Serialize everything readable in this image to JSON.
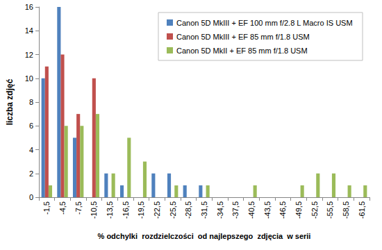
{
  "chart_data": {
    "type": "bar",
    "xlabel": "% odchylki  rozdzielczości  od najlepszego  zdjęcia  w serii",
    "ylabel": "liczba zdjęć",
    "categories": [
      "-1,5",
      "-4,5",
      "-7,5",
      "-10,5",
      "-13,5",
      "-16,5",
      "-19,5",
      "-22,5",
      "-25,5",
      "-28,5",
      "-31,5",
      "-34,5",
      "-37,5",
      "-40,5",
      "-43,5",
      "-46,5",
      "-49,5",
      "-52,5",
      "-55,5",
      "-58,5",
      "-61,5"
    ],
    "series": [
      {
        "name": "Canon 5D MkIII + EF 100 mm f/2.8 L Macro IS USM",
        "color": "#4f81bd",
        "values": [
          10,
          16,
          5,
          0,
          2,
          1,
          0,
          2,
          2,
          1,
          1,
          0,
          0,
          0,
          0,
          0,
          0,
          0,
          0,
          0,
          0
        ]
      },
      {
        "name": "Canon 5D MkIII + EF 85 mm f/1.8 USM",
        "color": "#c0504d",
        "values": [
          11,
          12,
          7,
          10,
          0,
          0,
          0,
          0,
          0,
          0,
          0,
          0,
          0,
          0,
          0,
          0,
          0,
          0,
          0,
          0,
          0
        ]
      },
      {
        "name": "Canon 5D MkII + EF 85 mm f/1.8 USM",
        "color": "#9bbb59",
        "values": [
          1,
          6,
          6,
          7,
          2,
          5,
          3,
          0,
          1,
          0,
          1,
          0,
          0,
          1,
          0,
          0,
          1,
          2,
          2,
          1,
          1
        ]
      }
    ],
    "ylim": [
      0,
      16
    ],
    "yticks": [
      0,
      2,
      4,
      6,
      8,
      10,
      12,
      14,
      16
    ],
    "grid": false,
    "legend": "top-right"
  }
}
